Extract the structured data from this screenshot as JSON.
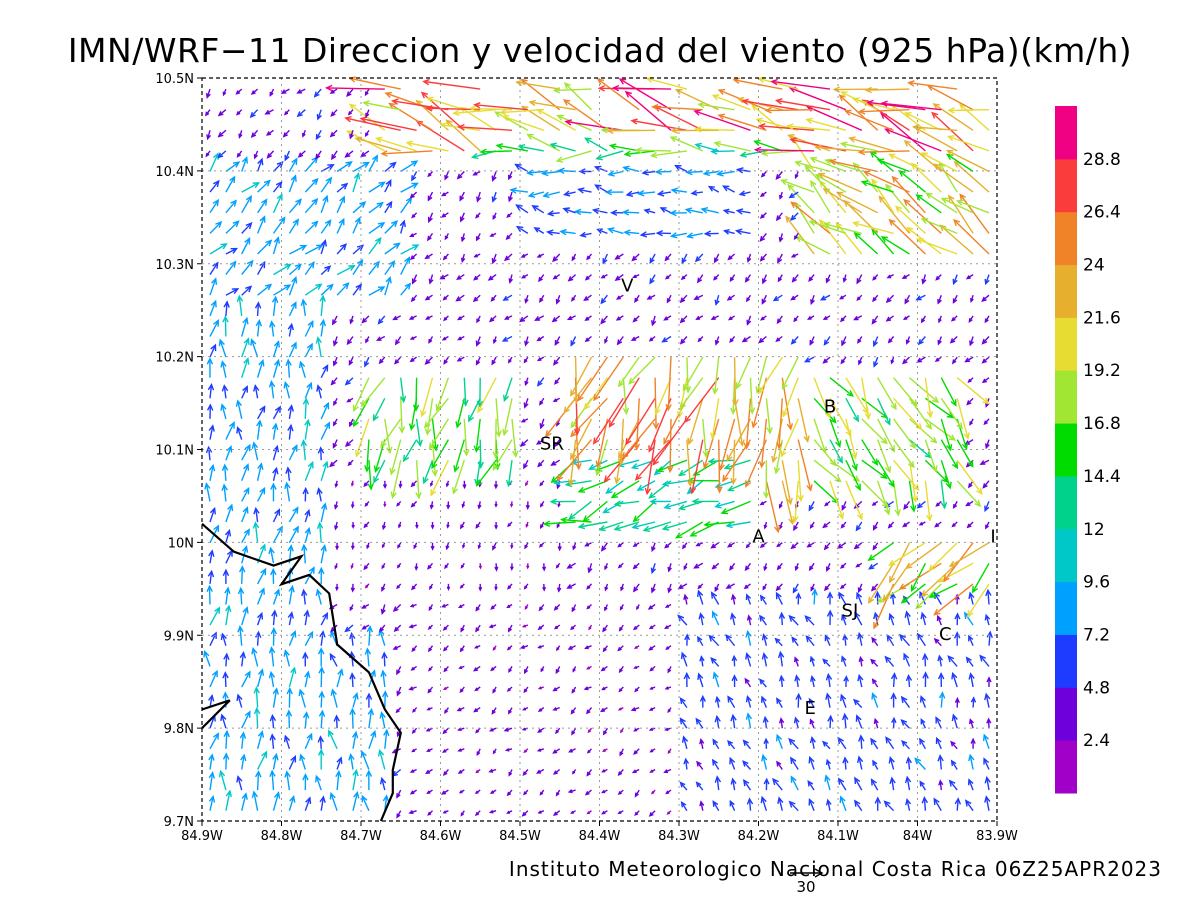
{
  "title": "IMN/WRF−11 Direccion y velocidad del viento (925 hPa)(km/h)",
  "footer": "Instituto Meteorologico Nacional Costa Rica 06Z25APR2023",
  "reference_vector_label": "30",
  "map": {
    "lon_range": [
      -84.9,
      -83.9
    ],
    "lat_range": [
      9.7,
      10.5
    ],
    "lon_ticks": [
      {
        "value": -84.9,
        "label": "84.9W"
      },
      {
        "value": -84.8,
        "label": "84.8W"
      },
      {
        "value": -84.7,
        "label": "84.7W"
      },
      {
        "value": -84.6,
        "label": "84.6W"
      },
      {
        "value": -84.5,
        "label": "84.5W"
      },
      {
        "value": -84.4,
        "label": "84.4W"
      },
      {
        "value": -84.3,
        "label": "84.3W"
      },
      {
        "value": -84.2,
        "label": "84.2W"
      },
      {
        "value": -84.1,
        "label": "84.1W"
      },
      {
        "value": -84.0,
        "label": "84W"
      },
      {
        "value": -83.9,
        "label": "83.9W"
      }
    ],
    "lat_ticks": [
      {
        "value": 9.7,
        "label": "9.7N"
      },
      {
        "value": 9.8,
        "label": "9.8N"
      },
      {
        "value": 9.9,
        "label": "9.9N"
      },
      {
        "value": 10.0,
        "label": "10N"
      },
      {
        "value": 10.1,
        "label": "10.1N"
      },
      {
        "value": 10.2,
        "label": "10.2N"
      },
      {
        "value": 10.3,
        "label": "10.3N"
      },
      {
        "value": 10.4,
        "label": "10.4N"
      },
      {
        "value": 10.5,
        "label": "10.5N"
      }
    ],
    "grid": true,
    "coastline": [
      [
        -84.9,
        10.02
      ],
      [
        -84.86,
        9.99
      ],
      [
        -84.81,
        9.975
      ],
      [
        -84.775,
        9.985
      ],
      [
        -84.8,
        9.955
      ],
      [
        -84.765,
        9.965
      ],
      [
        -84.74,
        9.945
      ],
      [
        -84.73,
        9.89
      ],
      [
        -84.71,
        9.875
      ],
      [
        -84.69,
        9.86
      ],
      [
        -84.67,
        9.82
      ],
      [
        -84.65,
        9.795
      ],
      [
        -84.66,
        9.755
      ],
      [
        -84.66,
        9.73
      ],
      [
        -84.675,
        9.7
      ]
    ],
    "island": [
      [
        -84.9,
        9.82
      ],
      [
        -84.865,
        9.83
      ],
      [
        -84.9,
        9.8
      ]
    ],
    "places": [
      {
        "label": "V",
        "lon": -84.365,
        "lat": 10.27
      },
      {
        "label": "SR",
        "lon": -84.46,
        "lat": 10.1
      },
      {
        "label": "B",
        "lon": -84.11,
        "lat": 10.14
      },
      {
        "label": "A",
        "lon": -84.2,
        "lat": 10.0
      },
      {
        "label": "I",
        "lon": -83.905,
        "lat": 10.0
      },
      {
        "label": "SJ",
        "lon": -84.085,
        "lat": 9.92
      },
      {
        "label": "C",
        "lon": -83.965,
        "lat": 9.895
      },
      {
        "label": "E",
        "lon": -84.135,
        "lat": 9.815
      }
    ]
  },
  "colorbar": {
    "colors": [
      "#a000c8",
      "#6e00dc",
      "#1e3cff",
      "#00a0ff",
      "#00c8c8",
      "#00d28c",
      "#00dc00",
      "#a0e632",
      "#e6dc32",
      "#e6af2d",
      "#f08228",
      "#fa3c3c",
      "#f00082"
    ],
    "labels": [
      "2.4",
      "4.8",
      "7.2",
      "9.6",
      "12",
      "14.4",
      "16.8",
      "19.2",
      "21.6",
      "24",
      "26.4",
      "28.8"
    ]
  },
  "chart_data": {
    "type": "vector-field",
    "title": "IMN/WRF−11 Direccion y velocidad del viento (925 hPa)(km/h)",
    "units": "km/h",
    "level": "925 hPa",
    "valid_time": "06Z25APR2023",
    "grid_spacing_deg": [
      0.02,
      0.0222
    ],
    "regions": [
      {
        "lon": [
          -84.9,
          -84.75
        ],
        "lat": [
          9.7,
          10.25
        ],
        "dir_to_deg": 5,
        "speed": 8
      },
      {
        "lon": [
          -84.75,
          -84.67
        ],
        "lat": [
          9.7,
          9.9
        ],
        "dir_to_deg": 355,
        "speed": 8
      },
      {
        "lon": [
          -84.68,
          -83.9
        ],
        "lat": [
          10.42,
          10.5
        ],
        "dir_to_deg": 290,
        "speed": 24
      },
      {
        "lon": [
          -84.55,
          -84.15
        ],
        "lat": [
          10.4,
          10.43
        ],
        "dir_to_deg": 275,
        "speed": 15
      },
      {
        "lon": [
          -84.15,
          -83.9
        ],
        "lat": [
          10.3,
          10.42
        ],
        "dir_to_deg": 305,
        "speed": 20
      },
      {
        "lon": [
          -84.5,
          -84.2
        ],
        "lat": [
          10.32,
          10.4
        ],
        "dir_to_deg": 280,
        "speed": 7
      },
      {
        "lon": [
          -84.9,
          -84.65
        ],
        "lat": [
          10.25,
          10.42
        ],
        "dir_to_deg": 40,
        "speed": 8
      },
      {
        "lon": [
          -84.45,
          -84.25
        ],
        "lat": [
          10.1,
          10.22
        ],
        "dir_to_deg": 200,
        "speed": 23
      },
      {
        "lon": [
          -84.25,
          -84.15
        ],
        "lat": [
          10.05,
          10.2
        ],
        "dir_to_deg": 190,
        "speed": 22
      },
      {
        "lon": [
          -84.7,
          -84.5
        ],
        "lat": [
          10.08,
          10.18
        ],
        "dir_to_deg": 195,
        "speed": 16
      },
      {
        "lon": [
          -84.15,
          -83.95
        ],
        "lat": [
          10.05,
          10.18
        ],
        "dir_to_deg": 150,
        "speed": 17
      },
      {
        "lon": [
          -84.05,
          -83.9
        ],
        "lat": [
          9.95,
          10.02
        ],
        "dir_to_deg": 225,
        "speed": 20
      },
      {
        "lon": [
          -84.45,
          -84.2
        ],
        "lat": [
          10.0,
          10.1
        ],
        "dir_to_deg": 250,
        "speed": 13
      },
      {
        "lon": [
          -84.75,
          -84.45
        ],
        "lat": [
          9.95,
          10.08
        ],
        "dir_to_deg": 200,
        "speed": 3
      },
      {
        "lon": [
          -84.65,
          -84.3
        ],
        "lat": [
          9.7,
          9.95
        ],
        "dir_to_deg": 230,
        "speed": 3
      },
      {
        "lon": [
          -84.3,
          -83.9
        ],
        "lat": [
          9.7,
          9.95
        ],
        "dir_to_deg": 340,
        "speed": 6
      }
    ],
    "reference_vector_kmh": 30
  }
}
